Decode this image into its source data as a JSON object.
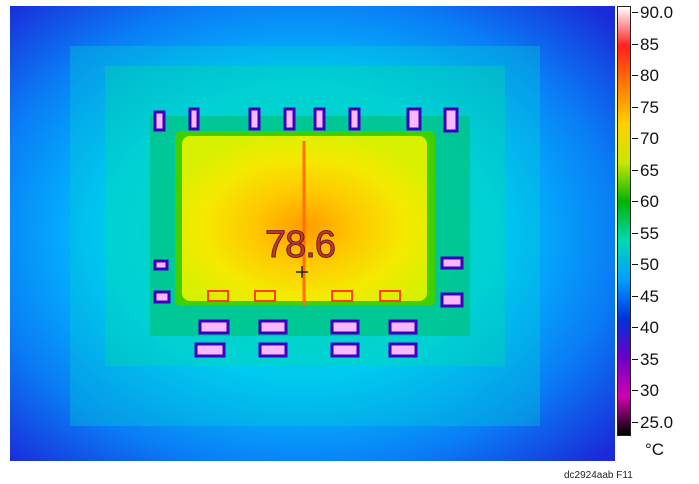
{
  "hotspot_temperature": "78.6",
  "colorbar": {
    "unit": "°C",
    "ticks": [
      "90.0",
      "85",
      "80",
      "75",
      "70",
      "65",
      "60",
      "55",
      "50",
      "45",
      "40",
      "35",
      "30",
      "25.0"
    ],
    "colors": [
      "#ffffff",
      "#ff2020",
      "#ff7a00",
      "#ffd000",
      "#c8e600",
      "#00b400",
      "#00d8b4",
      "#00a0ff",
      "#0033dd",
      "#6a00c8",
      "#d000b0",
      "#000000"
    ]
  },
  "caption": "dc2924aab F11"
}
